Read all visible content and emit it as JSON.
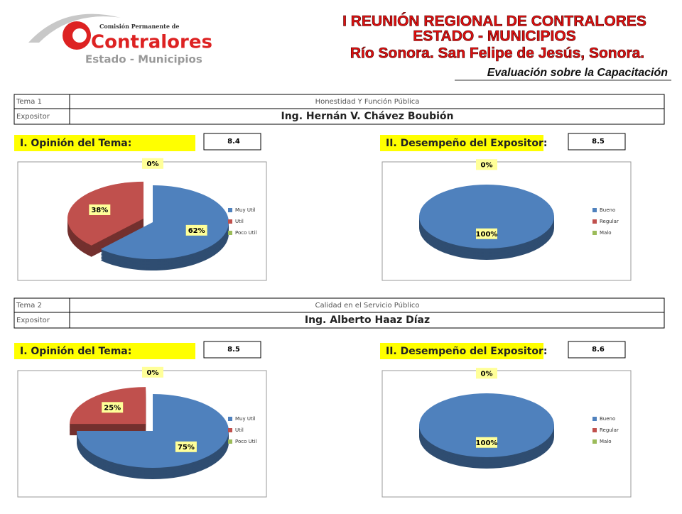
{
  "header": {
    "logo": {
      "line1": "Comisión Permanente de",
      "line2": "Contralores",
      "line3": "Estado - Municipios"
    },
    "title_lines": [
      "I REUNIÓN REGIONAL DE CONTRALORES",
      "ESTADO - MUNICIPIOS",
      "Río Sonora. San Felipe de Jesús, Sonora."
    ],
    "subtitle": "Evaluación sobre la Capacitación"
  },
  "sections": [
    {
      "tema_label": "Tema 1",
      "tema": "Honestidad Y Función Pública",
      "expositor_label": "Expositor",
      "expositor": "Ing. Hernán V. Chávez Boubión",
      "charts": [
        {
          "type": "pie",
          "title": "I. Opinión del Tema:",
          "score": 8.4,
          "categories": [
            "Muy Util",
            "Util",
            "Poco Util"
          ],
          "values": [
            62,
            38,
            0
          ],
          "value_labels": [
            "62%",
            "38%",
            "0%"
          ],
          "colors": [
            "#4f81bd",
            "#c0504d",
            "#9bbb59"
          ]
        },
        {
          "type": "pie",
          "title": "II. Desempeño del Expositor:",
          "score": 8.5,
          "categories": [
            "Bueno",
            "Regular",
            "Malo"
          ],
          "values": [
            100,
            0,
            0
          ],
          "value_labels": [
            "100%",
            "0%",
            "0%"
          ],
          "colors": [
            "#4f81bd",
            "#c0504d",
            "#9bbb59"
          ]
        }
      ]
    },
    {
      "tema_label": "Tema 2",
      "tema": "Calidad en el Servicio Público",
      "expositor_label": "Expositor",
      "expositor": "Ing. Alberto Haaz Díaz",
      "charts": [
        {
          "type": "pie",
          "title": "I. Opinión del Tema:",
          "score": 8.5,
          "categories": [
            "Muy Util",
            "Util",
            "Poco Util"
          ],
          "values": [
            75,
            25,
            0
          ],
          "value_labels": [
            "75%",
            "25%",
            "0%"
          ],
          "colors": [
            "#4f81bd",
            "#c0504d",
            "#9bbb59"
          ]
        },
        {
          "type": "pie",
          "title": "II. Desempeño del Expositor:",
          "score": 8.6,
          "categories": [
            "Bueno",
            "Regular",
            "Malo"
          ],
          "values": [
            100,
            0,
            0
          ],
          "value_labels": [
            "100%",
            "0%",
            "0%"
          ],
          "colors": [
            "#4f81bd",
            "#c0504d",
            "#9bbb59"
          ]
        }
      ]
    }
  ]
}
